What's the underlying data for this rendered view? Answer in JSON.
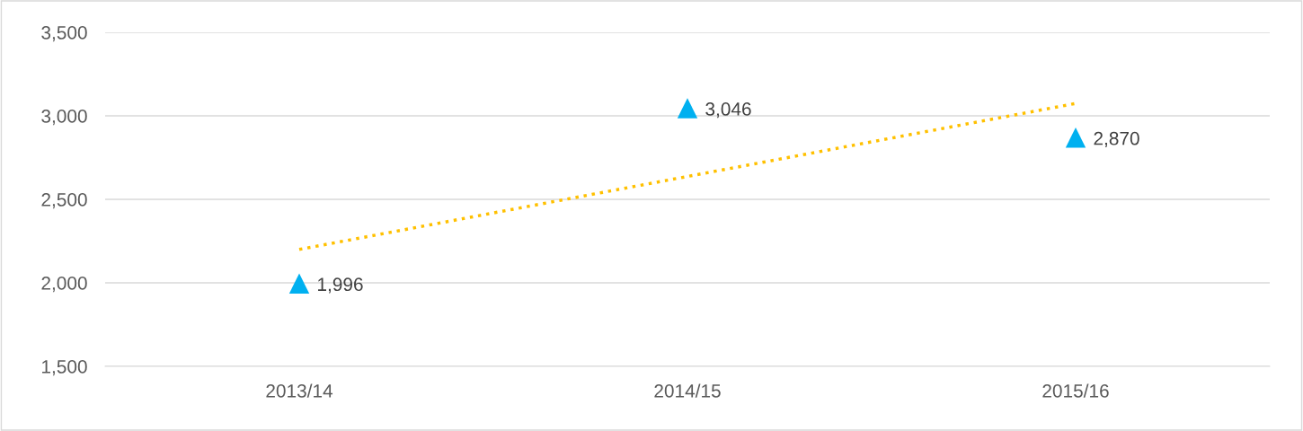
{
  "chart_data": {
    "type": "scatter",
    "categories": [
      "2013/14",
      "2014/15",
      "2015/16"
    ],
    "series": [
      {
        "color": "#00b0f0",
        "marker": "triangle",
        "values": [
          1996,
          3046,
          2870
        ],
        "value_labels": [
          "1,996",
          "3,046",
          "2,870"
        ]
      },
      {
        "type": "line",
        "color": "#ffc000",
        "line_style": "dotted",
        "marker": "none",
        "x": [
          "2013/14",
          "2015/16"
        ],
        "values": [
          2200,
          3074
        ]
      }
    ],
    "ylim": [
      1500,
      3500
    ],
    "yticks": [
      {
        "value": 1500,
        "label": "1,500"
      },
      {
        "value": 2000,
        "label": "2,000"
      },
      {
        "value": 2500,
        "label": "2,500"
      },
      {
        "value": 3000,
        "label": "3,000"
      },
      {
        "value": 3500,
        "label": "3,500"
      }
    ],
    "grid": "y",
    "legend": false
  }
}
